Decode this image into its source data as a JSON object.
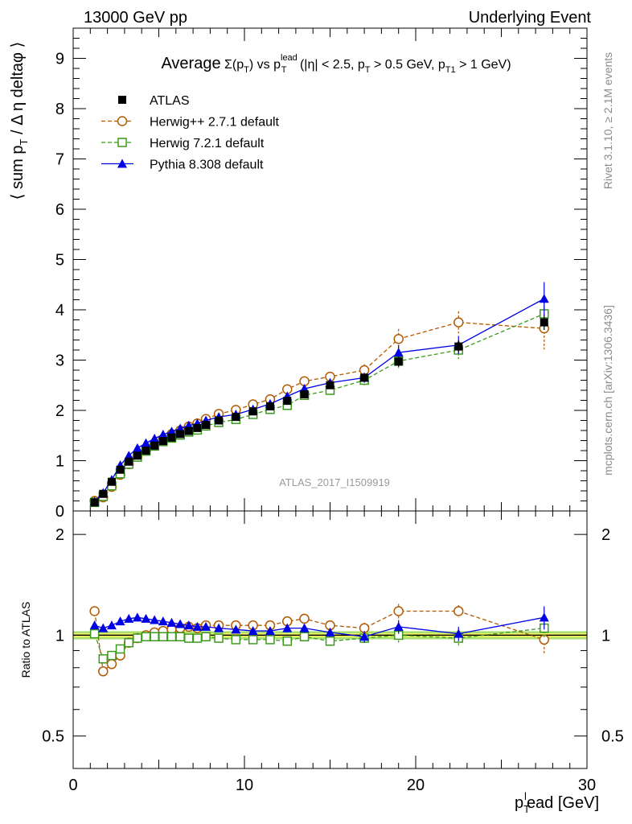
{
  "header": {
    "left": "13000 GeV pp",
    "right": "Underlying Event"
  },
  "side_labels": {
    "rivet": "Rivet 3.1.10, ≥ 2.1M events",
    "mcplots": "mcplots.cern.ch [arXiv:1306.3436]"
  },
  "colors": {
    "atlas": "#000000",
    "herwigpp": "#b35900",
    "herwig7": "#3c9a1e",
    "pythia": "#0000e6",
    "band_inner": "#ffff66",
    "band_outer": "#a8e070"
  },
  "chart_data": [
    {
      "type": "line",
      "title": "Average Σ(p_T) vs p_T^lead (|η| < 2.5, p_T > 0.5 GeV, p_T1 > 1 GeV)",
      "ylabel": "⟨ sum p_T / Δη deltaφ ⟩",
      "xlabel": "p_T^lead [GeV]",
      "analysis_label": "ATLAS_2017_I1509919",
      "xlim": [
        0,
        30
      ],
      "ylim": [
        0,
        9.6
      ],
      "yticks": [
        0,
        1,
        2,
        3,
        4,
        5,
        6,
        7,
        8,
        9
      ],
      "legend_position": "top-left",
      "x": [
        1.25,
        1.75,
        2.25,
        2.75,
        3.25,
        3.75,
        4.25,
        4.75,
        5.25,
        5.75,
        6.25,
        6.75,
        7.25,
        7.75,
        8.5,
        9.5,
        10.5,
        11.5,
        12.5,
        13.5,
        15,
        17,
        19,
        22.5,
        27.5
      ],
      "series": [
        {
          "name": "ATLAS",
          "marker": "square-filled",
          "color": "#000000",
          "style": "none",
          "values": [
            0.17,
            0.34,
            0.58,
            0.82,
            0.98,
            1.1,
            1.2,
            1.3,
            1.39,
            1.46,
            1.53,
            1.59,
            1.65,
            1.71,
            1.8,
            1.87,
            1.98,
            2.08,
            2.19,
            2.32,
            2.5,
            2.65,
            2.97,
            3.27,
            3.75
          ],
          "errors": [
            0.02,
            0.02,
            0.02,
            0.03,
            0.03,
            0.03,
            0.03,
            0.03,
            0.03,
            0.03,
            0.03,
            0.03,
            0.03,
            0.03,
            0.04,
            0.04,
            0.04,
            0.05,
            0.05,
            0.06,
            0.07,
            0.08,
            0.1,
            0.12,
            0.15
          ]
        },
        {
          "name": "Herwig++ 2.7.1 default",
          "marker": "circle-open",
          "color": "#b35900",
          "style": "dashed",
          "values": [
            0.2,
            0.27,
            0.48,
            0.72,
            0.93,
            1.08,
            1.2,
            1.32,
            1.43,
            1.53,
            1.6,
            1.68,
            1.74,
            1.83,
            1.93,
            2.01,
            2.12,
            2.22,
            2.42,
            2.58,
            2.67,
            2.8,
            3.42,
            3.75,
            3.63
          ],
          "errors": [
            0.02,
            0.02,
            0.02,
            0.03,
            0.03,
            0.03,
            0.03,
            0.03,
            0.03,
            0.03,
            0.03,
            0.03,
            0.04,
            0.04,
            0.04,
            0.05,
            0.05,
            0.06,
            0.07,
            0.08,
            0.09,
            0.12,
            0.2,
            0.22,
            0.42
          ]
        },
        {
          "name": "Herwig 7.2.1 default",
          "marker": "square-open",
          "color": "#3c9a1e",
          "style": "dashed",
          "values": [
            0.17,
            0.29,
            0.5,
            0.74,
            0.93,
            1.07,
            1.19,
            1.29,
            1.38,
            1.45,
            1.51,
            1.57,
            1.61,
            1.69,
            1.76,
            1.82,
            1.92,
            2.02,
            2.1,
            2.3,
            2.4,
            2.6,
            2.98,
            3.2,
            3.92
          ],
          "errors": [
            0.02,
            0.02,
            0.02,
            0.03,
            0.03,
            0.03,
            0.03,
            0.03,
            0.03,
            0.03,
            0.03,
            0.03,
            0.03,
            0.04,
            0.04,
            0.04,
            0.05,
            0.05,
            0.06,
            0.07,
            0.08,
            0.1,
            0.15,
            0.18,
            0.25
          ]
        },
        {
          "name": "Pythia 8.308 default",
          "marker": "triangle-filled",
          "color": "#0000e6",
          "style": "solid",
          "values": [
            0.19,
            0.36,
            0.62,
            0.91,
            1.1,
            1.25,
            1.35,
            1.44,
            1.52,
            1.58,
            1.64,
            1.7,
            1.74,
            1.8,
            1.87,
            1.92,
            2.02,
            2.13,
            2.28,
            2.43,
            2.55,
            2.65,
            3.15,
            3.3,
            4.22
          ],
          "errors": [
            0.02,
            0.02,
            0.02,
            0.03,
            0.03,
            0.03,
            0.03,
            0.03,
            0.03,
            0.03,
            0.03,
            0.03,
            0.03,
            0.04,
            0.04,
            0.04,
            0.05,
            0.05,
            0.06,
            0.07,
            0.08,
            0.1,
            0.15,
            0.18,
            0.33
          ]
        }
      ]
    },
    {
      "type": "line",
      "ylabel": "Ratio to ATLAS",
      "xlabel": "p_T^lead [GeV]",
      "xlim": [
        0,
        30
      ],
      "xticks": [
        0,
        10,
        20,
        30
      ],
      "ylim": [
        0.4,
        2.35
      ],
      "yscale": "log",
      "yticks": [
        0.5,
        1,
        2
      ],
      "reference_line": 1,
      "band_inner_halfwidth": 0.013,
      "band_outer_halfwidth": 0.028,
      "x": [
        1.25,
        1.75,
        2.25,
        2.75,
        3.25,
        3.75,
        4.25,
        4.75,
        5.25,
        5.75,
        6.25,
        6.75,
        7.25,
        7.75,
        8.5,
        9.5,
        10.5,
        11.5,
        12.5,
        13.5,
        15,
        17,
        19,
        22.5,
        27.5
      ],
      "series": [
        {
          "name": "Herwig++ 2.7.1 default",
          "marker": "circle-open",
          "color": "#b35900",
          "style": "dashed",
          "values": [
            1.18,
            0.78,
            0.82,
            0.87,
            0.95,
            0.98,
            1.0,
            1.02,
            1.03,
            1.04,
            1.05,
            1.06,
            1.05,
            1.07,
            1.07,
            1.07,
            1.07,
            1.07,
            1.1,
            1.12,
            1.07,
            1.05,
            1.18,
            1.18,
            0.97
          ],
          "errors": [
            0.03,
            0.02,
            0.02,
            0.02,
            0.02,
            0.02,
            0.02,
            0.02,
            0.02,
            0.02,
            0.02,
            0.02,
            0.02,
            0.02,
            0.02,
            0.02,
            0.02,
            0.02,
            0.03,
            0.03,
            0.03,
            0.04,
            0.06,
            0.05,
            0.09
          ]
        },
        {
          "name": "Herwig 7.2.1 default",
          "marker": "square-open",
          "color": "#3c9a1e",
          "style": "dashed",
          "values": [
            1.01,
            0.85,
            0.87,
            0.91,
            0.95,
            0.98,
            0.99,
            0.99,
            0.99,
            0.99,
            0.99,
            0.98,
            0.98,
            0.99,
            0.98,
            0.97,
            0.97,
            0.97,
            0.96,
            0.99,
            0.96,
            0.98,
            1.0,
            0.98,
            1.05
          ],
          "errors": [
            0.02,
            0.02,
            0.02,
            0.02,
            0.02,
            0.02,
            0.02,
            0.02,
            0.02,
            0.02,
            0.02,
            0.02,
            0.02,
            0.02,
            0.02,
            0.02,
            0.02,
            0.02,
            0.03,
            0.03,
            0.03,
            0.04,
            0.05,
            0.05,
            0.07
          ]
        },
        {
          "name": "Pythia 8.308 default",
          "marker": "triangle-filled",
          "color": "#0000e6",
          "style": "solid",
          "values": [
            1.07,
            1.05,
            1.07,
            1.1,
            1.12,
            1.13,
            1.12,
            1.11,
            1.1,
            1.09,
            1.08,
            1.07,
            1.06,
            1.06,
            1.05,
            1.04,
            1.03,
            1.03,
            1.05,
            1.05,
            1.02,
            0.99,
            1.06,
            1.01,
            1.13
          ],
          "errors": [
            0.02,
            0.02,
            0.02,
            0.02,
            0.02,
            0.02,
            0.02,
            0.02,
            0.02,
            0.02,
            0.02,
            0.02,
            0.02,
            0.02,
            0.02,
            0.02,
            0.02,
            0.02,
            0.03,
            0.03,
            0.03,
            0.04,
            0.05,
            0.05,
            0.09
          ]
        }
      ]
    }
  ]
}
